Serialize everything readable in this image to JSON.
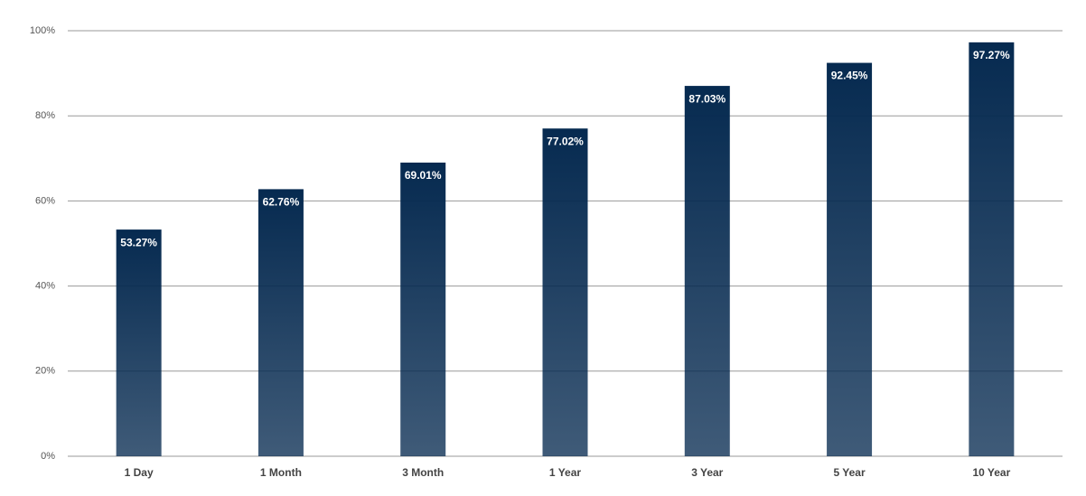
{
  "chart_data": {
    "type": "bar",
    "categories": [
      "1 Day",
      "1 Month",
      "3 Month",
      "1 Year",
      "3 Year",
      "5 Year",
      "10 Year"
    ],
    "values": [
      53.27,
      62.76,
      69.01,
      77.02,
      87.03,
      92.45,
      97.27
    ],
    "value_labels": [
      "53.27%",
      "62.76%",
      "69.01%",
      "77.02%",
      "87.03%",
      "92.45%",
      "97.27%"
    ],
    "color": "#062a50",
    "ylim": [
      0,
      100
    ],
    "yticks": [
      {
        "value": 0,
        "label": "0%"
      },
      {
        "value": 20,
        "label": "20%"
      },
      {
        "value": 40,
        "label": "40%"
      },
      {
        "value": 60,
        "label": "60%"
      },
      {
        "value": 80,
        "label": "80%"
      },
      {
        "value": 100,
        "label": "100%"
      }
    ],
    "grid": true
  }
}
